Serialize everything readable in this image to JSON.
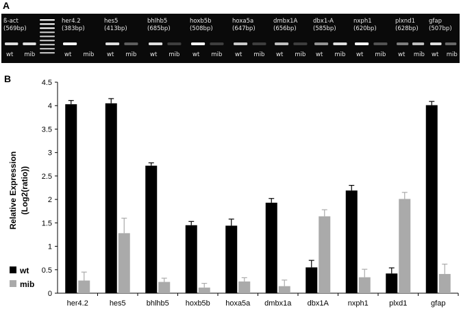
{
  "panel_a": {
    "letter": "A",
    "genes": [
      {
        "name": "ß-act",
        "size": "(569bp)"
      },
      {
        "name": "her4.2",
        "size": "(383bp)"
      },
      {
        "name": "hes5",
        "size": "(413bp)"
      },
      {
        "name": "bhlhb5",
        "size": "(685bp)"
      },
      {
        "name": "hoxb5b",
        "size": "(508bp)"
      },
      {
        "name": "hoxa5a",
        "size": "(647bp)"
      },
      {
        "name": "dmbx1A",
        "size": "(656bp)"
      },
      {
        "name": "dbx1-A",
        "size": "(585bp)"
      },
      {
        "name": "nxph1",
        "size": "(620bp)"
      },
      {
        "name": "plxnd1",
        "size": "(628bp)"
      },
      {
        "name": "gfap",
        "size": "(507bp)"
      }
    ],
    "lane_labels": [
      "wt",
      "mib"
    ],
    "band_intensity": [
      [
        0.85,
        0.85
      ],
      [
        1.0,
        0.0
      ],
      [
        0.85,
        0.25
      ],
      [
        0.85,
        0.1
      ],
      [
        1.0,
        0.1
      ],
      [
        0.75,
        0.1
      ],
      [
        0.7,
        0.1
      ],
      [
        0.5,
        0.85
      ],
      [
        1.0,
        0.2
      ],
      [
        0.4,
        0.7
      ],
      [
        0.85,
        0.3
      ]
    ]
  },
  "panel_b": {
    "letter": "B",
    "legend": [
      {
        "label": "wt",
        "color": "#000000"
      },
      {
        "label": "mib",
        "color": "#aaaaaa"
      }
    ]
  },
  "chart_data": {
    "type": "bar",
    "categories": [
      "her4.2",
      "hes5",
      "bhlhb5",
      "hoxb5b",
      "hoxa5a",
      "dmbx1a",
      "dbx1A",
      "nxph1",
      "plxd1",
      "gfap"
    ],
    "series": [
      {
        "name": "wt",
        "color": "#000000",
        "values": [
          4.03,
          4.05,
          2.72,
          1.45,
          1.44,
          1.93,
          0.55,
          2.19,
          0.42,
          4.01
        ],
        "errors": [
          0.08,
          0.1,
          0.06,
          0.08,
          0.14,
          0.09,
          0.15,
          0.11,
          0.12,
          0.08
        ]
      },
      {
        "name": "mib",
        "color": "#aaaaaa",
        "values": [
          0.27,
          1.28,
          0.24,
          0.12,
          0.25,
          0.15,
          1.64,
          0.34,
          2.01,
          0.41
        ],
        "errors": [
          0.18,
          0.32,
          0.08,
          0.09,
          0.08,
          0.13,
          0.14,
          0.17,
          0.14,
          0.21
        ]
      }
    ],
    "ylabel_line1": "Relative Expression",
    "ylabel_line2": "(Log2(ratio))",
    "xlabel": "",
    "ylim": [
      0,
      4.5
    ],
    "yticks": [
      "0",
      "0.5",
      "1",
      "1.5",
      "2",
      "2.5",
      "3",
      "3.5",
      "4",
      "4.5"
    ],
    "grid": false,
    "legend_position": "left"
  }
}
